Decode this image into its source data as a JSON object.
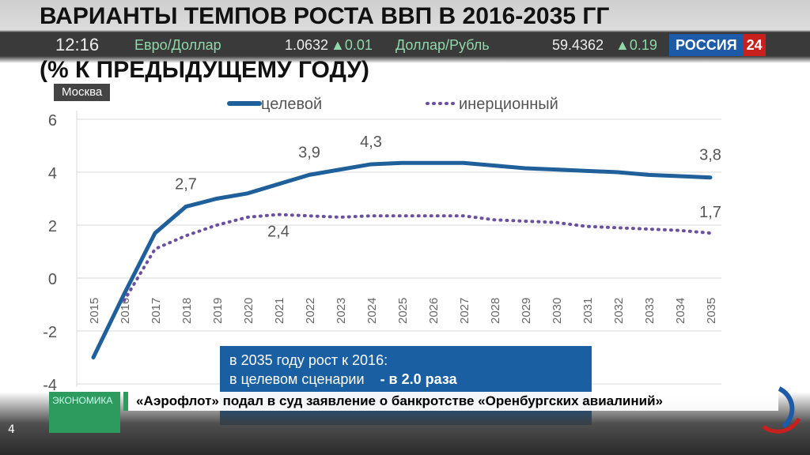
{
  "slide": {
    "title_line1": "ВАРИАНТЫ ТЕМПОВ РОСТА ВВП В 2016-2035 ГГ",
    "title_line2": "(% К ПРЕДЫДУЩЕМУ ГОДУ)",
    "info_line1": "в 2035 году рост к 2016:",
    "info_line2_label": "в целевом сценарии",
    "info_line2_value": "- в 2.0 раза",
    "page": "4"
  },
  "broadcast": {
    "time": "12:16",
    "pair1": "Евро/Доллар",
    "pair1_value": "1.0632",
    "pair1_change": "0.01",
    "pair2": "Доллар/Рубль",
    "pair2_value": "59.4362",
    "pair2_change": "0.19",
    "channel": "РОССИЯ",
    "channel_num": "24",
    "city": "Москва",
    "category": "ЭКОНОМИКА",
    "headline": "«Аэрофлот» подал в суд заявление о банкротстве «Оренбургских авиалиний»",
    "accent": "#2d9a5e",
    "logo_blue": "#1d5aa8",
    "logo_red": "#c8201c"
  },
  "chart_data": {
    "type": "line",
    "x": [
      2015,
      2016,
      2017,
      2018,
      2019,
      2020,
      2021,
      2022,
      2023,
      2024,
      2025,
      2026,
      2027,
      2028,
      2029,
      2030,
      2031,
      2032,
      2033,
      2034,
      2035
    ],
    "ylim": [
      -4,
      6
    ],
    "yticks": [
      -4,
      -2,
      0,
      2,
      4,
      6
    ],
    "grid": true,
    "legend": "top",
    "series": [
      {
        "name": "целевой",
        "style": "solid",
        "color": "#1f5f9a",
        "values": [
          -3,
          -0.6,
          1.7,
          2.7,
          3.0,
          3.2,
          3.55,
          3.9,
          4.1,
          4.3,
          4.35,
          4.35,
          4.35,
          4.25,
          4.15,
          4.1,
          4.05,
          4.0,
          3.9,
          3.85,
          3.8
        ]
      },
      {
        "name": "инерционный",
        "style": "dotted",
        "color": "#6b4fa0",
        "values": [
          null,
          -0.85,
          1.1,
          1.6,
          2.0,
          2.3,
          2.4,
          2.35,
          2.3,
          2.35,
          2.35,
          2.35,
          2.35,
          2.2,
          2.15,
          2.1,
          1.95,
          1.9,
          1.85,
          1.8,
          1.7
        ]
      }
    ],
    "data_labels": [
      {
        "series": 0,
        "x": 2018,
        "text": "2,7"
      },
      {
        "series": 0,
        "x": 2022,
        "text": "3,9"
      },
      {
        "series": 0,
        "x": 2024,
        "text": "4,3"
      },
      {
        "series": 0,
        "x": 2035,
        "text": "3,8"
      },
      {
        "series": 1,
        "x": 2021,
        "text": "2,4"
      },
      {
        "series": 1,
        "x": 2035,
        "text": "1,7"
      }
    ]
  }
}
